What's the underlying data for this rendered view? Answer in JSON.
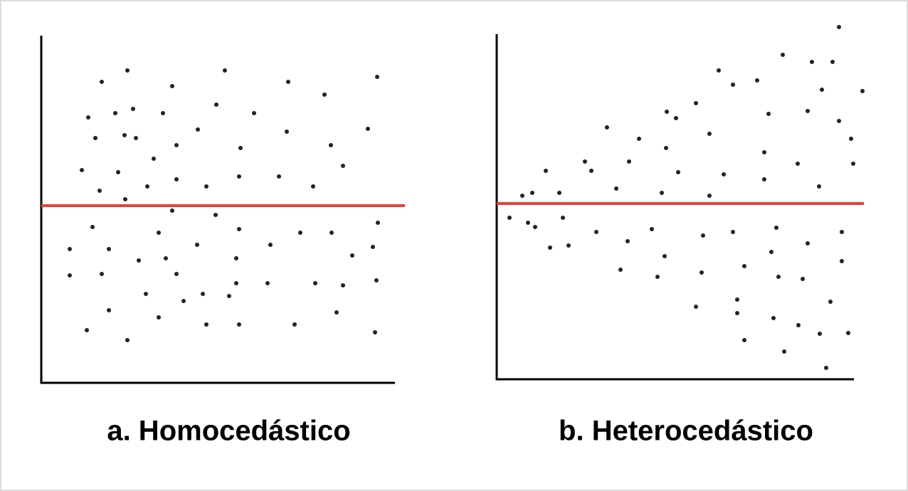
{
  "chart_data": [
    {
      "type": "scatter",
      "title": "a. Homocedástico",
      "color": "#222222",
      "hline": 249,
      "hline_color": "#e8413a",
      "xlim": [
        0,
        497
      ],
      "ylim": [
        0,
        488
      ],
      "x": [
        85,
        121,
        258,
        184,
        347,
        472,
        66,
        104,
        129,
        171,
        246,
        299,
        398,
        76,
        117,
        133,
        220,
        190,
        280,
        345,
        407,
        459,
        57,
        108,
        158,
        190,
        232,
        278,
        334,
        382,
        424,
        82,
        118,
        149,
        184,
        245,
        72,
        165,
        219,
        278,
        322,
        364,
        408,
        473,
        40,
        95,
        137,
        175,
        274,
        437,
        466,
        40,
        85,
        190,
        274,
        318,
        385,
        424,
        471,
        147,
        200,
        227,
        264,
        95,
        165,
        232,
        278,
        356,
        415,
        64,
        121,
        469
      ],
      "values": [
        423,
        439,
        439,
        417,
        423,
        430,
        373,
        379,
        385,
        379,
        391,
        379,
        405,
        344,
        348,
        344,
        356,
        334,
        330,
        353,
        334,
        357,
        299,
        296,
        315,
        286,
        276,
        290,
        290,
        276,
        305,
        270,
        258,
        276,
        242,
        236,
        219,
        211,
        194,
        216,
        194,
        211,
        211,
        225,
        188,
        188,
        172,
        175,
        175,
        179,
        191,
        151,
        153,
        153,
        140,
        140,
        140,
        137,
        144,
        125,
        115,
        125,
        122,
        102,
        92,
        82,
        82,
        82,
        99,
        74,
        60,
        71
      ]
    },
    {
      "type": "scatter",
      "title": "b. Heterocedástico",
      "color": "#222222",
      "hline": 247,
      "hline_color": "#e8413a",
      "xlim": [
        0,
        502
      ],
      "ylim": [
        0,
        485
      ],
      "x": [
        481,
        402,
        443,
        472,
        312,
        366,
        332,
        457,
        514,
        280,
        382,
        437,
        239,
        252,
        481,
        155,
        299,
        200,
        498,
        238,
        376,
        124,
        186,
        133,
        69,
        255,
        319,
        423,
        501,
        376,
        453,
        36,
        50,
        88,
        168,
        232,
        299,
        18,
        44,
        54,
        93,
        140,
        218,
        290,
        332,
        393,
        485,
        75,
        101,
        184,
        236,
        386,
        437,
        174,
        226,
        288,
        348,
        396,
        430,
        485,
        280,
        338,
        338,
        389,
        469,
        424,
        454,
        494,
        348,
        404,
        463
      ],
      "values": [
        495,
        456,
        446,
        446,
        434,
        420,
        414,
        407,
        405,
        388,
        373,
        377,
        376,
        367,
        363,
        354,
        345,
        338,
        338,
        325,
        319,
        306,
        306,
        293,
        293,
        291,
        288,
        303,
        303,
        281,
        271,
        258,
        262,
        262,
        268,
        262,
        258,
        227,
        220,
        214,
        227,
        207,
        211,
        202,
        207,
        213,
        207,
        185,
        188,
        194,
        173,
        179,
        191,
        154,
        144,
        150,
        159,
        144,
        141,
        166,
        102,
        112,
        93,
        86,
        109,
        76,
        64,
        65,
        55,
        39,
        16
      ]
    }
  ]
}
